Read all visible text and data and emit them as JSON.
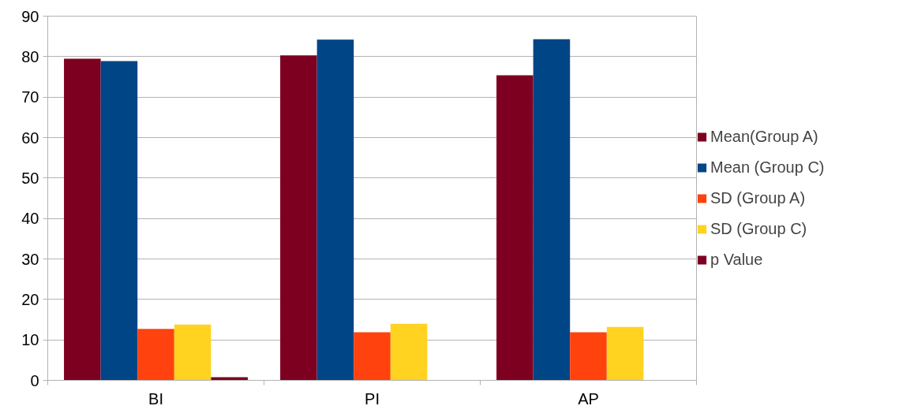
{
  "chart_data": {
    "type": "bar",
    "categories": [
      "BI",
      "PI",
      "AP"
    ],
    "series": [
      {
        "name": "Mean(Group A)",
        "color": "#7e0021",
        "values": [
          79.5,
          80.3,
          75.4
        ]
      },
      {
        "name": "Mean (Group C)",
        "color": "#004586",
        "values": [
          78.9,
          84.2,
          84.3
        ]
      },
      {
        "name": "SD (Group A)",
        "color": "#ff420e",
        "values": [
          12.7,
          11.9,
          11.9
        ]
      },
      {
        "name": "SD (Group C)",
        "color": "#ffd320",
        "values": [
          13.8,
          14.0,
          13.2
        ]
      },
      {
        "name": "p Value",
        "color": "#7e0021",
        "values": [
          0.8,
          null,
          null
        ]
      }
    ],
    "ylim": [
      0,
      90
    ],
    "yticks": [
      0,
      10,
      20,
      30,
      40,
      50,
      60,
      70,
      80,
      90
    ],
    "grid": "y",
    "legend": "right"
  }
}
